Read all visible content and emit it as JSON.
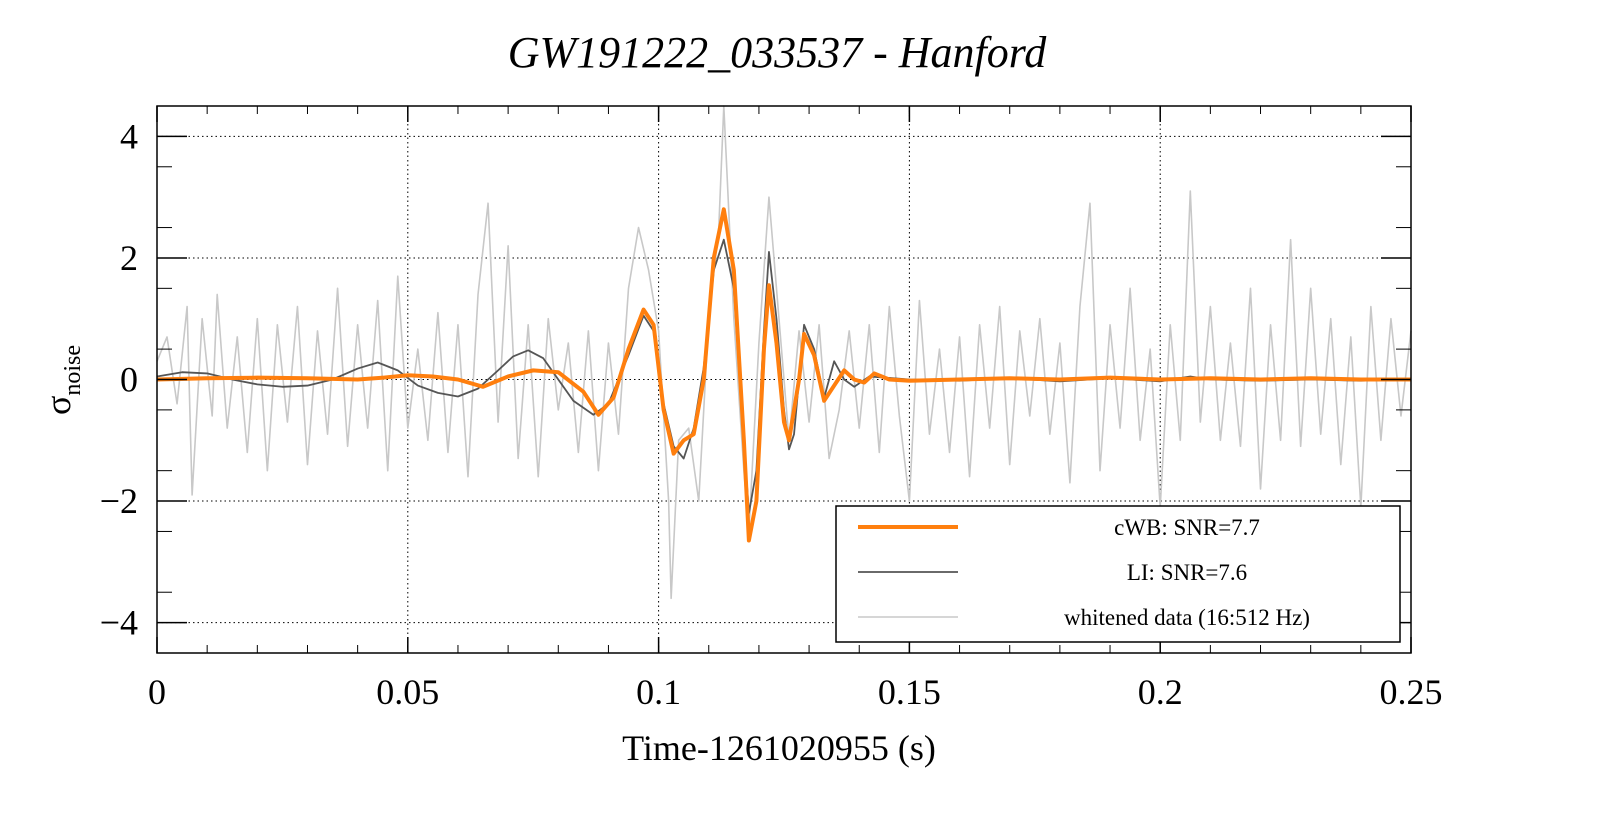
{
  "chart_data": {
    "type": "line",
    "title": "GW191222_033537 - Hanford",
    "xlabel": "Time-1261020955 (s)",
    "ylabel_main": "σ",
    "ylabel_sub": "noise",
    "xlim": [
      0,
      0.25
    ],
    "ylim": [
      -4.5,
      4.5
    ],
    "xticks": [
      0,
      0.05,
      0.1,
      0.15,
      0.2,
      0.25
    ],
    "xtick_labels": [
      "0",
      "0.05",
      "0.1",
      "0.15",
      "0.2",
      "0.25"
    ],
    "yticks": [
      4,
      2,
      0,
      -2,
      -4
    ],
    "ytick_labels": [
      "4",
      "2",
      "0",
      "−2",
      "−4"
    ],
    "grid": true,
    "legend_position": "bottom-right",
    "series": [
      {
        "name": "cWB: SNR=7.7",
        "color": "#ff7f0e",
        "points": [
          [
            0,
            0
          ],
          [
            0.01,
            0.02
          ],
          [
            0.02,
            0.03
          ],
          [
            0.03,
            0.02
          ],
          [
            0.04,
            0.0
          ],
          [
            0.045,
            0.03
          ],
          [
            0.05,
            0.07
          ],
          [
            0.055,
            0.05
          ],
          [
            0.06,
            0.0
          ],
          [
            0.065,
            -0.12
          ],
          [
            0.07,
            0.05
          ],
          [
            0.075,
            0.15
          ],
          [
            0.08,
            0.12
          ],
          [
            0.085,
            -0.2
          ],
          [
            0.088,
            -0.58
          ],
          [
            0.091,
            -0.3
          ],
          [
            0.094,
            0.5
          ],
          [
            0.097,
            1.15
          ],
          [
            0.099,
            0.9
          ],
          [
            0.101,
            -0.5
          ],
          [
            0.103,
            -1.22
          ],
          [
            0.105,
            -1.0
          ],
          [
            0.107,
            -0.9
          ],
          [
            0.109,
            0.0
          ],
          [
            0.111,
            2.0
          ],
          [
            0.113,
            2.8
          ],
          [
            0.115,
            1.8
          ],
          [
            0.117,
            -1.0
          ],
          [
            0.118,
            -2.65
          ],
          [
            0.1195,
            -2.0
          ],
          [
            0.121,
            0.5
          ],
          [
            0.122,
            1.55
          ],
          [
            0.1235,
            0.6
          ],
          [
            0.125,
            -0.7
          ],
          [
            0.126,
            -1.0
          ],
          [
            0.128,
            0.0
          ],
          [
            0.129,
            0.75
          ],
          [
            0.131,
            0.4
          ],
          [
            0.133,
            -0.35
          ],
          [
            0.135,
            -0.1
          ],
          [
            0.137,
            0.15
          ],
          [
            0.139,
            0.0
          ],
          [
            0.141,
            -0.05
          ],
          [
            0.143,
            0.1
          ],
          [
            0.146,
            0.0
          ],
          [
            0.15,
            -0.02
          ],
          [
            0.16,
            0.0
          ],
          [
            0.17,
            0.02
          ],
          [
            0.18,
            0.0
          ],
          [
            0.19,
            0.03
          ],
          [
            0.2,
            0.0
          ],
          [
            0.21,
            0.02
          ],
          [
            0.22,
            0.0
          ],
          [
            0.23,
            0.02
          ],
          [
            0.24,
            0.0
          ],
          [
            0.25,
            0.0
          ]
        ]
      },
      {
        "name": "LI: SNR=7.6",
        "color": "#555555",
        "points": [
          [
            0,
            0.05
          ],
          [
            0.005,
            0.12
          ],
          [
            0.01,
            0.1
          ],
          [
            0.015,
            0.0
          ],
          [
            0.02,
            -0.08
          ],
          [
            0.025,
            -0.12
          ],
          [
            0.03,
            -0.1
          ],
          [
            0.035,
            0.0
          ],
          [
            0.04,
            0.18
          ],
          [
            0.044,
            0.28
          ],
          [
            0.048,
            0.15
          ],
          [
            0.052,
            -0.1
          ],
          [
            0.056,
            -0.22
          ],
          [
            0.06,
            -0.28
          ],
          [
            0.064,
            -0.15
          ],
          [
            0.068,
            0.15
          ],
          [
            0.071,
            0.38
          ],
          [
            0.074,
            0.48
          ],
          [
            0.077,
            0.35
          ],
          [
            0.08,
            0.0
          ],
          [
            0.083,
            -0.35
          ],
          [
            0.087,
            -0.58
          ],
          [
            0.09,
            -0.4
          ],
          [
            0.094,
            0.4
          ],
          [
            0.097,
            1.05
          ],
          [
            0.099,
            0.8
          ],
          [
            0.101,
            -0.4
          ],
          [
            0.103,
            -1.1
          ],
          [
            0.105,
            -1.3
          ],
          [
            0.107,
            -0.8
          ],
          [
            0.109,
            0.2
          ],
          [
            0.111,
            1.8
          ],
          [
            0.113,
            2.3
          ],
          [
            0.115,
            1.5
          ],
          [
            0.117,
            -1.0
          ],
          [
            0.118,
            -2.2
          ],
          [
            0.1195,
            -1.5
          ],
          [
            0.121,
            0.8
          ],
          [
            0.122,
            2.1
          ],
          [
            0.1235,
            1.0
          ],
          [
            0.125,
            -0.5
          ],
          [
            0.126,
            -1.15
          ],
          [
            0.127,
            -0.9
          ],
          [
            0.128,
            0.0
          ],
          [
            0.129,
            0.9
          ],
          [
            0.131,
            0.5
          ],
          [
            0.133,
            -0.3
          ],
          [
            0.135,
            0.3
          ],
          [
            0.137,
            0.0
          ],
          [
            0.139,
            -0.12
          ],
          [
            0.142,
            0.05
          ],
          [
            0.15,
            0.0
          ],
          [
            0.16,
            -0.02
          ],
          [
            0.17,
            0.02
          ],
          [
            0.18,
            -0.03
          ],
          [
            0.19,
            0.02
          ],
          [
            0.2,
            -0.03
          ],
          [
            0.206,
            0.05
          ],
          [
            0.21,
            0.0
          ],
          [
            0.22,
            -0.02
          ],
          [
            0.23,
            0.0
          ],
          [
            0.24,
            -0.02
          ],
          [
            0.25,
            0.0
          ]
        ]
      },
      {
        "name": "whitened data (16:512 Hz)",
        "color": "#c8c8c8",
        "points": [
          [
            0,
            0.3
          ],
          [
            0.002,
            0.7
          ],
          [
            0.004,
            -0.4
          ],
          [
            0.006,
            1.2
          ],
          [
            0.007,
            -1.9
          ],
          [
            0.009,
            1.0
          ],
          [
            0.011,
            -0.6
          ],
          [
            0.012,
            1.4
          ],
          [
            0.014,
            -0.8
          ],
          [
            0.016,
            0.7
          ],
          [
            0.018,
            -1.2
          ],
          [
            0.02,
            1.0
          ],
          [
            0.022,
            -1.5
          ],
          [
            0.024,
            0.9
          ],
          [
            0.026,
            -0.7
          ],
          [
            0.028,
            1.2
          ],
          [
            0.03,
            -1.4
          ],
          [
            0.032,
            0.8
          ],
          [
            0.034,
            -0.9
          ],
          [
            0.036,
            1.5
          ],
          [
            0.038,
            -1.1
          ],
          [
            0.04,
            0.9
          ],
          [
            0.042,
            -0.8
          ],
          [
            0.044,
            1.3
          ],
          [
            0.046,
            -1.5
          ],
          [
            0.048,
            1.7
          ],
          [
            0.05,
            -0.8
          ],
          [
            0.052,
            0.5
          ],
          [
            0.054,
            -1.0
          ],
          [
            0.056,
            1.1
          ],
          [
            0.058,
            -1.2
          ],
          [
            0.06,
            0.9
          ],
          [
            0.062,
            -1.6
          ],
          [
            0.064,
            1.4
          ],
          [
            0.066,
            2.9
          ],
          [
            0.068,
            -0.7
          ],
          [
            0.07,
            2.2
          ],
          [
            0.072,
            -1.3
          ],
          [
            0.074,
            0.9
          ],
          [
            0.076,
            -1.6
          ],
          [
            0.078,
            1.0
          ],
          [
            0.08,
            -0.5
          ],
          [
            0.082,
            0.6
          ],
          [
            0.084,
            -1.2
          ],
          [
            0.086,
            0.8
          ],
          [
            0.088,
            -1.5
          ],
          [
            0.09,
            0.6
          ],
          [
            0.092,
            -0.9
          ],
          [
            0.094,
            1.5
          ],
          [
            0.096,
            2.5
          ],
          [
            0.098,
            1.8
          ],
          [
            0.1,
            0.8
          ],
          [
            0.102,
            -2.0
          ],
          [
            0.1025,
            -3.6
          ],
          [
            0.104,
            -1.0
          ],
          [
            0.106,
            -0.8
          ],
          [
            0.108,
            -2.0
          ],
          [
            0.11,
            1.0
          ],
          [
            0.112,
            2.5
          ],
          [
            0.113,
            4.5
          ],
          [
            0.115,
            1.0
          ],
          [
            0.117,
            -1.5
          ],
          [
            0.118,
            -2.5
          ],
          [
            0.12,
            0.6
          ],
          [
            0.122,
            3.0
          ],
          [
            0.124,
            1.0
          ],
          [
            0.126,
            -1.0
          ],
          [
            0.128,
            0.8
          ],
          [
            0.13,
            -0.7
          ],
          [
            0.132,
            0.9
          ],
          [
            0.134,
            -1.3
          ],
          [
            0.136,
            -0.5
          ],
          [
            0.138,
            0.8
          ],
          [
            0.14,
            -0.8
          ],
          [
            0.142,
            0.9
          ],
          [
            0.144,
            -1.2
          ],
          [
            0.146,
            1.2
          ],
          [
            0.148,
            -0.6
          ],
          [
            0.15,
            -2.0
          ],
          [
            0.152,
            1.3
          ],
          [
            0.154,
            -0.9
          ],
          [
            0.156,
            0.5
          ],
          [
            0.158,
            -1.2
          ],
          [
            0.16,
            0.7
          ],
          [
            0.162,
            -1.6
          ],
          [
            0.164,
            0.9
          ],
          [
            0.166,
            -0.8
          ],
          [
            0.168,
            1.2
          ],
          [
            0.17,
            -1.4
          ],
          [
            0.172,
            0.8
          ],
          [
            0.174,
            -0.6
          ],
          [
            0.176,
            1.0
          ],
          [
            0.178,
            -0.9
          ],
          [
            0.18,
            0.6
          ],
          [
            0.182,
            -1.7
          ],
          [
            0.184,
            1.2
          ],
          [
            0.186,
            2.9
          ],
          [
            0.188,
            -1.5
          ],
          [
            0.19,
            0.9
          ],
          [
            0.192,
            -0.8
          ],
          [
            0.194,
            1.5
          ],
          [
            0.196,
            -1.0
          ],
          [
            0.198,
            0.5
          ],
          [
            0.2,
            -2.1
          ],
          [
            0.202,
            0.9
          ],
          [
            0.204,
            -1.0
          ],
          [
            0.206,
            3.1
          ],
          [
            0.208,
            -0.7
          ],
          [
            0.21,
            1.2
          ],
          [
            0.212,
            -1.0
          ],
          [
            0.214,
            0.6
          ],
          [
            0.216,
            -1.1
          ],
          [
            0.218,
            1.5
          ],
          [
            0.22,
            -1.8
          ],
          [
            0.222,
            0.9
          ],
          [
            0.224,
            -1.0
          ],
          [
            0.226,
            2.3
          ],
          [
            0.228,
            -1.1
          ],
          [
            0.23,
            1.5
          ],
          [
            0.232,
            -0.9
          ],
          [
            0.234,
            1.0
          ],
          [
            0.236,
            -1.4
          ],
          [
            0.238,
            0.7
          ],
          [
            0.24,
            -2.1
          ],
          [
            0.242,
            1.2
          ],
          [
            0.244,
            -1.0
          ],
          [
            0.246,
            1.0
          ],
          [
            0.248,
            -0.6
          ],
          [
            0.25,
            0.8
          ]
        ]
      }
    ]
  }
}
